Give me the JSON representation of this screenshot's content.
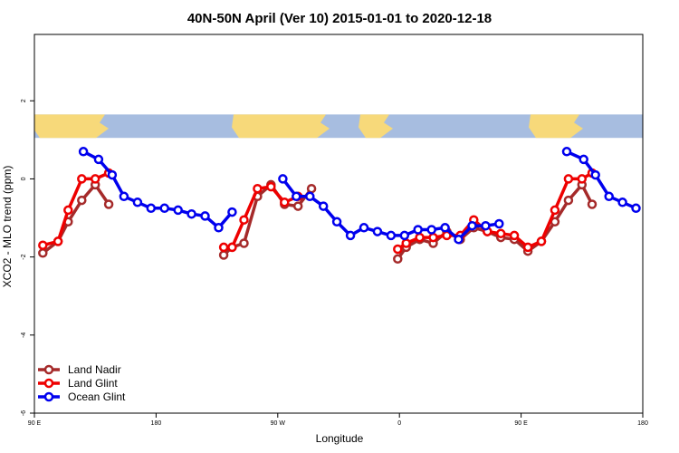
{
  "chart_data": {
    "type": "line",
    "title": "40N-50N April (Ver 10)   2015-01-01 to 2020-12-18",
    "xlabel": "Longitude",
    "ylabel": "XCO2 - MLO trend (ppm)",
    "xlim": [
      90,
      450
    ],
    "ylim": [
      -6.0,
      3.7
    ],
    "x_ticks": [
      {
        "value": 90,
        "label": "90 E"
      },
      {
        "value": 162,
        "label": "180"
      },
      {
        "value": 234,
        "label": "90 W"
      },
      {
        "value": 306,
        "label": "0"
      },
      {
        "value": 378,
        "label": "90 E"
      },
      {
        "value": 450,
        "label": "180"
      }
    ],
    "y_ticks": [
      {
        "value": 2,
        "label": "2"
      },
      {
        "value": 0,
        "label": "0"
      },
      {
        "value": -2,
        "label": "-2"
      },
      {
        "value": -4,
        "label": "-4"
      },
      {
        "value": -6,
        "label": "-6"
      }
    ],
    "map_band": {
      "ymin": 1.05,
      "ymax": 1.65,
      "land_color": "#f7d97a",
      "ocean_color": "#a7bde0"
    },
    "legend_position": "bottom-left",
    "series": [
      {
        "name": "Land Nadir",
        "color": "#a52a2a",
        "segments": [
          [
            [
              95,
              -1.9
            ],
            [
              104,
              -1.6
            ],
            [
              110,
              -1.1
            ],
            [
              118,
              -0.55
            ],
            [
              126,
              -0.15
            ],
            [
              134,
              -0.65
            ]
          ],
          [
            [
              202,
              -1.95
            ],
            [
              207,
              -1.75
            ],
            [
              214,
              -1.65
            ],
            [
              222,
              -0.45
            ],
            [
              230,
              -0.15
            ],
            [
              238,
              -0.65
            ],
            [
              246,
              -0.7
            ],
            [
              254,
              -0.25
            ]
          ],
          [
            [
              305,
              -2.05
            ],
            [
              310,
              -1.75
            ],
            [
              318,
              -1.55
            ],
            [
              326,
              -1.65
            ],
            [
              334,
              -1.35
            ],
            [
              342,
              -1.55
            ],
            [
              350,
              -1.25
            ],
            [
              358,
              -1.35
            ],
            [
              366,
              -1.5
            ],
            [
              374,
              -1.55
            ],
            [
              382,
              -1.85
            ],
            [
              390,
              -1.6
            ],
            [
              398,
              -1.1
            ],
            [
              406,
              -0.55
            ],
            [
              414,
              -0.15
            ],
            [
              420,
              -0.65
            ]
          ]
        ]
      },
      {
        "name": "Land Glint",
        "color": "#ee0000",
        "segments": [
          [
            [
              95,
              -1.7
            ],
            [
              104,
              -1.6
            ],
            [
              110,
              -0.8
            ],
            [
              118,
              0.0
            ],
            [
              126,
              0.0
            ],
            [
              134,
              0.15
            ]
          ],
          [
            [
              202,
              -1.75
            ],
            [
              207,
              -1.75
            ],
            [
              214,
              -1.05
            ],
            [
              222,
              -0.25
            ],
            [
              230,
              -0.2
            ],
            [
              238,
              -0.6
            ],
            [
              246,
              -0.45
            ]
          ],
          [
            [
              305,
              -1.8
            ],
            [
              310,
              -1.65
            ],
            [
              318,
              -1.5
            ],
            [
              326,
              -1.5
            ],
            [
              334,
              -1.45
            ],
            [
              342,
              -1.45
            ],
            [
              350,
              -1.05
            ],
            [
              358,
              -1.35
            ],
            [
              366,
              -1.4
            ],
            [
              374,
              -1.45
            ],
            [
              382,
              -1.75
            ],
            [
              390,
              -1.6
            ],
            [
              398,
              -0.8
            ],
            [
              406,
              0.0
            ],
            [
              414,
              0.0
            ],
            [
              420,
              0.15
            ]
          ]
        ]
      },
      {
        "name": "Ocean Glint",
        "color": "#0000ee",
        "segments": [
          [
            [
              119,
              0.7
            ],
            [
              128,
              0.5
            ],
            [
              136,
              0.1
            ],
            [
              143,
              -0.45
            ],
            [
              151,
              -0.6
            ],
            [
              159,
              -0.75
            ],
            [
              167,
              -0.75
            ],
            [
              175,
              -0.8
            ],
            [
              183,
              -0.9
            ],
            [
              191,
              -0.95
            ],
            [
              199,
              -1.25
            ],
            [
              207,
              -0.85
            ]
          ],
          [
            [
              237,
              0.0
            ],
            [
              245,
              -0.45
            ],
            [
              253,
              -0.45
            ],
            [
              261,
              -0.7
            ],
            [
              269,
              -1.1
            ],
            [
              277,
              -1.45
            ],
            [
              285,
              -1.25
            ],
            [
              293,
              -1.35
            ],
            [
              301,
              -1.45
            ],
            [
              309,
              -1.45
            ],
            [
              317,
              -1.3
            ],
            [
              325,
              -1.3
            ],
            [
              333,
              -1.25
            ],
            [
              341,
              -1.55
            ],
            [
              349,
              -1.2
            ],
            [
              357,
              -1.2
            ],
            [
              365,
              -1.15
            ]
          ],
          [
            [
              405,
              0.7
            ],
            [
              415,
              0.5
            ],
            [
              422,
              0.1
            ],
            [
              430,
              -0.45
            ],
            [
              438,
              -0.6
            ],
            [
              446,
              -0.75
            ]
          ]
        ]
      }
    ]
  }
}
